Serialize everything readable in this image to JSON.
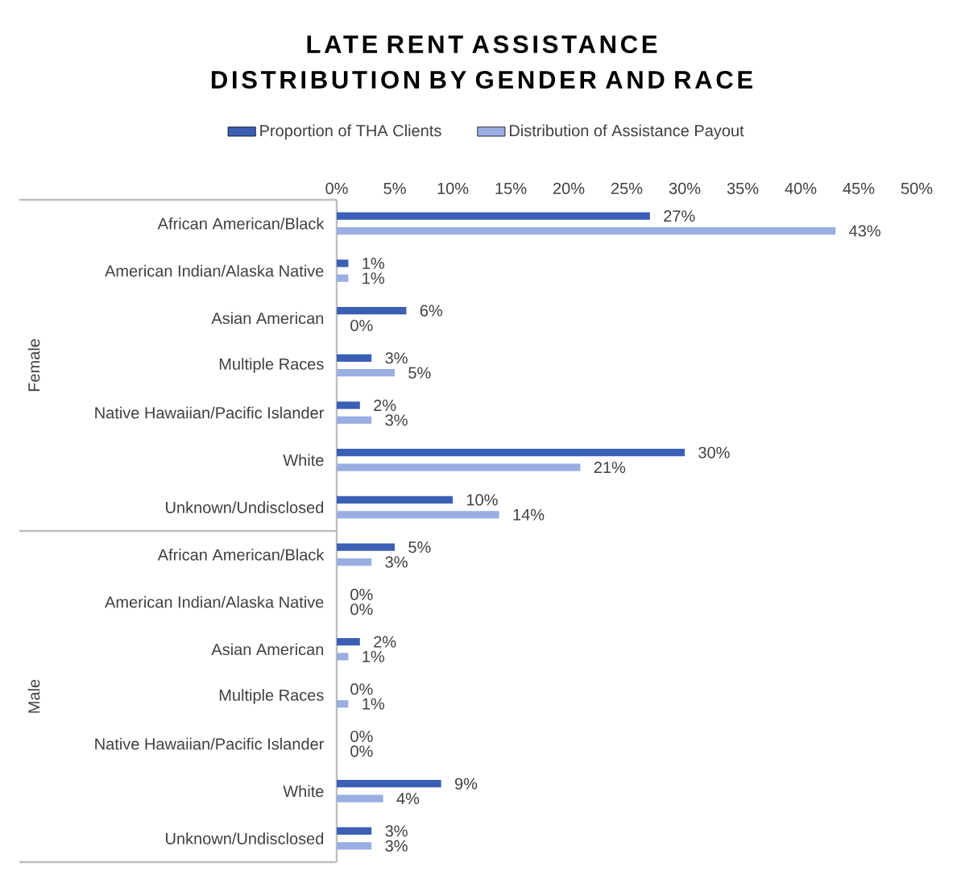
{
  "chart_data": {
    "type": "bar",
    "orientation": "horizontal",
    "title": "LATE RENT ASSISTANCE DISTRIBUTION BY GENDER AND RACE",
    "categories": [
      "African American/Black",
      "American Indian/Alaska Native",
      "Asian American",
      "Multiple Races",
      "Native Hawaiian/Pacific Islander",
      "White",
      "Unknown/Undisclosed",
      "African American/Black",
      "American Indian/Alaska Native",
      "Asian American",
      "Multiple Races",
      "Native Hawaiian/Pacific Islander",
      "White",
      "Unknown/Undisclosed"
    ],
    "series": [
      {
        "name": "Proportion of THA Clients",
        "color": "#3b5fb5",
        "values": [
          27,
          1,
          6,
          3,
          2,
          30,
          10,
          5,
          0,
          2,
          0,
          0,
          9,
          3
        ],
        "value_labels": [
          "27%",
          "1%",
          "6%",
          "3%",
          "2%",
          "30%",
          "10%",
          "5%",
          "0%",
          "2%",
          "0%",
          "0%",
          "9%",
          "3%"
        ]
      },
      {
        "name": "Distribution of Assistance Payout",
        "color": "#9aaee2",
        "values": [
          43,
          1,
          0,
          5,
          3,
          21,
          14,
          3,
          0,
          1,
          1,
          0,
          4,
          3
        ],
        "value_labels": [
          "43%",
          "1%",
          "0%",
          "5%",
          "3%",
          "21%",
          "14%",
          "3%",
          "0%",
          "1%",
          "1%",
          "0%",
          "4%",
          "3%"
        ]
      }
    ],
    "annotations": [
      "Female",
      "Male"
    ],
    "xlim": [
      0,
      50
    ],
    "xticks": [
      {
        "value": 0,
        "label": "0%"
      },
      {
        "value": 5,
        "label": "5%"
      },
      {
        "value": 10,
        "label": "10%"
      },
      {
        "value": 15,
        "label": "15%"
      },
      {
        "value": 20,
        "label": "20%"
      },
      {
        "value": 25,
        "label": "25%"
      },
      {
        "value": 30,
        "label": "30%"
      },
      {
        "value": 35,
        "label": "35%"
      },
      {
        "value": 40,
        "label": "40%"
      },
      {
        "value": 45,
        "label": "45%"
      },
      {
        "value": 50,
        "label": "50%"
      }
    ],
    "legend": "top",
    "grid": false
  }
}
